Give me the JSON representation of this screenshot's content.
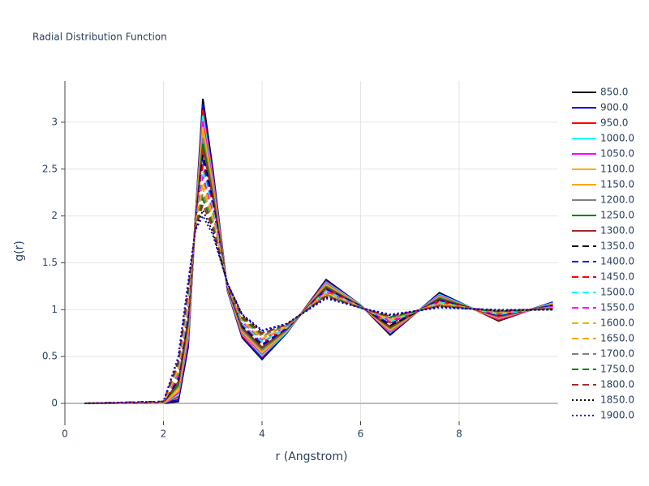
{
  "chart_data": {
    "type": "line",
    "title": "Radial Distribution Function",
    "x_label": "r (Angstrom)",
    "y_label": "g(r)",
    "x": [
      0.4,
      2.0,
      2.3,
      2.5,
      2.65,
      2.8,
      3.0,
      3.3,
      3.6,
      4.0,
      4.5,
      5.3,
      6.0,
      6.6,
      7.6,
      8.8,
      9.9
    ],
    "xlim": [
      0,
      10
    ],
    "xticks": [
      0,
      2,
      4,
      6,
      8
    ],
    "ylim": [
      -0.19,
      3.44
    ],
    "yticks": [
      0,
      0.5,
      1,
      1.5,
      2,
      2.5,
      3
    ],
    "grid": true,
    "series": [
      {
        "name": "850.0",
        "color": "#000000",
        "dash": "solid",
        "values": [
          0,
          0,
          0.02,
          0.6,
          2.0,
          3.25,
          2.5,
          1.2,
          0.7,
          0.47,
          0.75,
          1.32,
          1.05,
          0.73,
          1.18,
          0.88,
          1.08
        ]
      },
      {
        "name": "900.0",
        "color": "#0000ff",
        "dash": "solid",
        "values": [
          0,
          0,
          0.04,
          0.63,
          1.99,
          3.19,
          2.47,
          1.2,
          0.71,
          0.48,
          0.75,
          1.31,
          1.05,
          0.74,
          1.17,
          0.89,
          1.08
        ]
      },
      {
        "name": "950.0",
        "color": "#ff0000",
        "dash": "solid",
        "values": [
          0,
          0,
          0.07,
          0.67,
          1.99,
          3.13,
          2.43,
          1.21,
          0.72,
          0.5,
          0.76,
          1.3,
          1.05,
          0.75,
          1.16,
          0.89,
          1.07
        ]
      },
      {
        "name": "1000.0",
        "color": "#00ffff",
        "dash": "solid",
        "values": [
          0,
          0,
          0.09,
          0.7,
          1.98,
          3.07,
          2.4,
          1.21,
          0.74,
          0.51,
          0.76,
          1.29,
          1.05,
          0.76,
          1.16,
          0.9,
          1.07
        ]
      },
      {
        "name": "1050.0",
        "color": "#ff00ff",
        "dash": "solid",
        "values": [
          0,
          0,
          0.11,
          0.73,
          1.97,
          3.01,
          2.37,
          1.22,
          0.75,
          0.53,
          0.77,
          1.28,
          1.04,
          0.77,
          1.15,
          0.9,
          1.06
        ]
      },
      {
        "name": "1100.0",
        "color": "#f0b400",
        "dash": "solid",
        "values": [
          0,
          0,
          0.13,
          0.77,
          1.96,
          2.95,
          2.33,
          1.22,
          0.76,
          0.54,
          0.77,
          1.27,
          1.04,
          0.78,
          1.14,
          0.91,
          1.06
        ]
      },
      {
        "name": "1150.0",
        "color": "#ffa500",
        "dash": "solid",
        "values": [
          0,
          0.01,
          0.16,
          0.8,
          1.96,
          2.89,
          2.3,
          1.22,
          0.77,
          0.56,
          0.78,
          1.26,
          1.04,
          0.79,
          1.13,
          0.91,
          1.06
        ]
      },
      {
        "name": "1200.0",
        "color": "#808080",
        "dash": "solid",
        "values": [
          0,
          0.01,
          0.18,
          0.83,
          1.95,
          2.83,
          2.27,
          1.23,
          0.78,
          0.57,
          0.78,
          1.25,
          1.04,
          0.8,
          1.13,
          0.92,
          1.05
        ]
      },
      {
        "name": "1250.0",
        "color": "#008000",
        "dash": "solid",
        "values": [
          0,
          0.01,
          0.2,
          0.87,
          1.94,
          2.77,
          2.23,
          1.23,
          0.8,
          0.59,
          0.79,
          1.24,
          1.04,
          0.81,
          1.12,
          0.93,
          1.05
        ]
      },
      {
        "name": "1300.0",
        "color": "#a52a2a",
        "dash": "solid",
        "values": [
          0,
          0.01,
          0.23,
          0.9,
          1.94,
          2.71,
          2.2,
          1.23,
          0.81,
          0.6,
          0.79,
          1.23,
          1.04,
          0.82,
          1.11,
          0.93,
          1.05
        ]
      },
      {
        "name": "1350.0",
        "color": "#000000",
        "dash": "dash",
        "values": [
          0,
          0.01,
          0.25,
          0.93,
          1.93,
          2.65,
          2.17,
          1.24,
          0.82,
          0.62,
          0.8,
          1.22,
          1.04,
          0.83,
          1.1,
          0.94,
          1.04
        ]
      },
      {
        "name": "1400.0",
        "color": "#0000ff",
        "dash": "dash",
        "values": [
          0,
          0.01,
          0.27,
          0.97,
          1.92,
          2.6,
          2.13,
          1.24,
          0.83,
          0.63,
          0.8,
          1.22,
          1.03,
          0.85,
          1.1,
          0.94,
          1.04
        ]
      },
      {
        "name": "1450.0",
        "color": "#ff0000",
        "dash": "dash",
        "values": [
          0,
          0.01,
          0.29,
          1.0,
          1.91,
          2.54,
          2.1,
          1.25,
          0.84,
          0.65,
          0.81,
          1.21,
          1.03,
          0.86,
          1.09,
          0.95,
          1.03
        ]
      },
      {
        "name": "1500.0",
        "color": "#00ffff",
        "dash": "dash",
        "values": [
          0,
          0.01,
          0.32,
          1.03,
          1.91,
          2.48,
          2.07,
          1.25,
          0.85,
          0.66,
          0.81,
          1.2,
          1.03,
          0.87,
          1.08,
          0.95,
          1.03
        ]
      },
      {
        "name": "1550.0",
        "color": "#ff00ff",
        "dash": "dash",
        "values": [
          0,
          0.01,
          0.34,
          1.07,
          1.9,
          2.42,
          2.03,
          1.25,
          0.87,
          0.68,
          0.82,
          1.19,
          1.03,
          0.88,
          1.07,
          0.96,
          1.03
        ]
      },
      {
        "name": "1600.0",
        "color": "#f0b400",
        "dash": "dash",
        "values": [
          0,
          0.01,
          0.36,
          1.1,
          1.89,
          2.36,
          2.0,
          1.26,
          0.88,
          0.69,
          0.82,
          1.18,
          1.03,
          0.89,
          1.07,
          0.97,
          1.02
        ]
      },
      {
        "name": "1650.0",
        "color": "#ffa500",
        "dash": "dash",
        "values": [
          0,
          0.02,
          0.39,
          1.13,
          1.89,
          2.3,
          1.97,
          1.26,
          0.89,
          0.71,
          0.83,
          1.17,
          1.03,
          0.9,
          1.06,
          0.97,
          1.02
        ]
      },
      {
        "name": "1700.0",
        "color": "#808080",
        "dash": "dash",
        "values": [
          0,
          0.02,
          0.41,
          1.17,
          1.88,
          2.24,
          1.93,
          1.26,
          0.9,
          0.72,
          0.83,
          1.16,
          1.03,
          0.91,
          1.05,
          0.98,
          1.02
        ]
      },
      {
        "name": "1750.0",
        "color": "#008000",
        "dash": "dash",
        "values": [
          0,
          0.02,
          0.43,
          1.2,
          1.87,
          2.18,
          1.9,
          1.27,
          0.91,
          0.74,
          0.84,
          1.15,
          1.02,
          0.92,
          1.04,
          0.98,
          1.01
        ]
      },
      {
        "name": "1800.0",
        "color": "#a52a2a",
        "dash": "dash",
        "values": [
          0,
          0.02,
          0.45,
          1.23,
          1.86,
          2.12,
          1.87,
          1.27,
          0.93,
          0.75,
          0.84,
          1.14,
          1.02,
          0.93,
          1.04,
          0.99,
          1.01
        ]
      },
      {
        "name": "1850.0",
        "color": "#000000",
        "dash": "dot",
        "values": [
          0,
          0.02,
          0.48,
          1.27,
          1.86,
          2.06,
          1.83,
          1.28,
          0.94,
          0.77,
          0.85,
          1.13,
          1.02,
          0.94,
          1.03,
          0.99,
          1.0
        ]
      },
      {
        "name": "1900.0",
        "color": "#0000ff",
        "dash": "dot",
        "values": [
          0,
          0.02,
          0.5,
          1.3,
          1.85,
          2.0,
          1.8,
          1.28,
          0.95,
          0.78,
          0.85,
          1.12,
          1.02,
          0.95,
          1.02,
          1.0,
          1.0
        ]
      }
    ]
  }
}
